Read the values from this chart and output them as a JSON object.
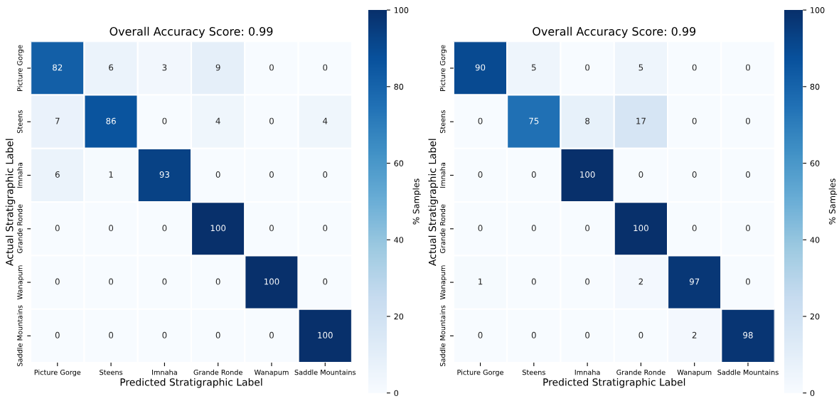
{
  "chart_data": [
    {
      "type": "heatmap",
      "title": "Overall Accuracy Score: 0.99",
      "xlabel": "Predicted Stratigraphic Label",
      "ylabel": "Actual Stratigraphic Label",
      "clabel": "% Samples",
      "categories": [
        "Picture Gorge",
        "Steens",
        "Imnaha",
        "Grande Ronde",
        "Wanapum",
        "Saddle Mountains"
      ],
      "y_categories": [
        "Picture Gorge",
        "Steens",
        "Imnaha",
        "Grande Ronde",
        "Wanapum",
        "Saddle Mountains"
      ],
      "cells": [
        [
          82,
          6,
          3,
          9,
          0,
          0
        ],
        [
          7,
          86,
          0,
          4,
          0,
          4
        ],
        [
          6,
          1,
          93,
          0,
          0,
          0
        ],
        [
          0,
          0,
          0,
          100,
          0,
          0
        ],
        [
          0,
          0,
          0,
          0,
          100,
          0
        ],
        [
          0,
          0,
          0,
          0,
          0,
          100
        ]
      ],
      "clim": [
        0,
        100
      ],
      "cticks": [
        0,
        20,
        40,
        60,
        80,
        100
      ],
      "data_labels": true
    },
    {
      "type": "heatmap",
      "title": "Overall Accuracy Score: 0.99",
      "xlabel": "Predicted Stratigraphic Label",
      "ylabel": "Actual Stratigraphic Label",
      "clabel": "% Samples",
      "categories": [
        "Picture Gorge",
        "Steens",
        "Imnaha",
        "Grande Ronde",
        "Wanapum",
        "Saddle Mountains"
      ],
      "y_categories": [
        "Picture Gorge",
        "Steens",
        "Imnaha",
        "Grande Ronde",
        "Wanapum",
        "Saddle Mountains"
      ],
      "cells": [
        [
          90,
          5,
          0,
          5,
          0,
          0
        ],
        [
          0,
          75,
          8,
          17,
          0,
          0
        ],
        [
          0,
          0,
          100,
          0,
          0,
          0
        ],
        [
          0,
          0,
          0,
          100,
          0,
          0
        ],
        [
          1,
          0,
          0,
          2,
          97,
          0
        ],
        [
          0,
          0,
          0,
          0,
          2,
          98
        ]
      ],
      "clim": [
        0,
        100
      ],
      "cticks": [
        0,
        20,
        40,
        60,
        80,
        100
      ],
      "data_labels": true
    }
  ]
}
